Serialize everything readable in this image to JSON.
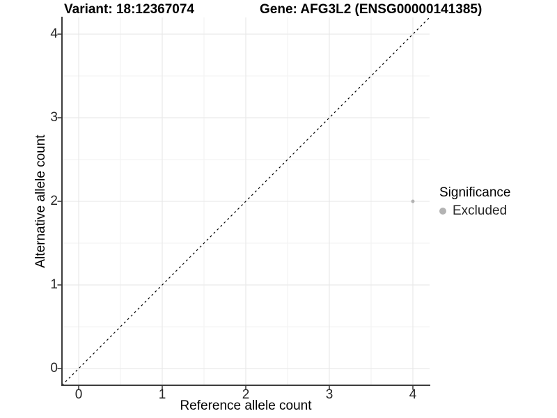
{
  "header": {
    "variant_title": "Variant: 18:12367074",
    "gene_title": "Gene: AFG3L2 (ENSG00000141385)"
  },
  "chart_data": {
    "type": "scatter",
    "title": "Variant: 18:12367074    Gene: AFG3L2 (ENSG00000141385)",
    "xlabel": "Reference allele count",
    "ylabel": "Alternative allele count",
    "xlim": [
      -0.2,
      4.2
    ],
    "ylim": [
      -0.2,
      4.2
    ],
    "xticks": [
      0,
      1,
      2,
      3,
      4
    ],
    "yticks": [
      0,
      1,
      2,
      3,
      4
    ],
    "minor_xticks": [
      0.5,
      1.5,
      2.5,
      3.5
    ],
    "minor_yticks": [
      0.5,
      1.5,
      2.5,
      3.5
    ],
    "grid": true,
    "series": [
      {
        "name": "Excluded",
        "color": "#b3b3b3",
        "points": [
          {
            "x": 4,
            "y": 2
          }
        ]
      }
    ],
    "reference_line": {
      "type": "identity",
      "slope": 1,
      "intercept": 0,
      "linetype": "dashed",
      "color": "#000000"
    },
    "legend": {
      "title": "Significance",
      "position": "right",
      "entries": [
        {
          "label": "Excluded",
          "color": "#b3b3b3"
        }
      ]
    }
  },
  "colors": {
    "background": "#ffffff",
    "point": "#b3b3b3",
    "grid_major": "#e5e5e5",
    "grid_minor": "#f2f2f2",
    "axis_line": "#3c3c3c",
    "tick_mark": "#333333",
    "tick_label": "#262626",
    "dash_line": "#000000"
  }
}
